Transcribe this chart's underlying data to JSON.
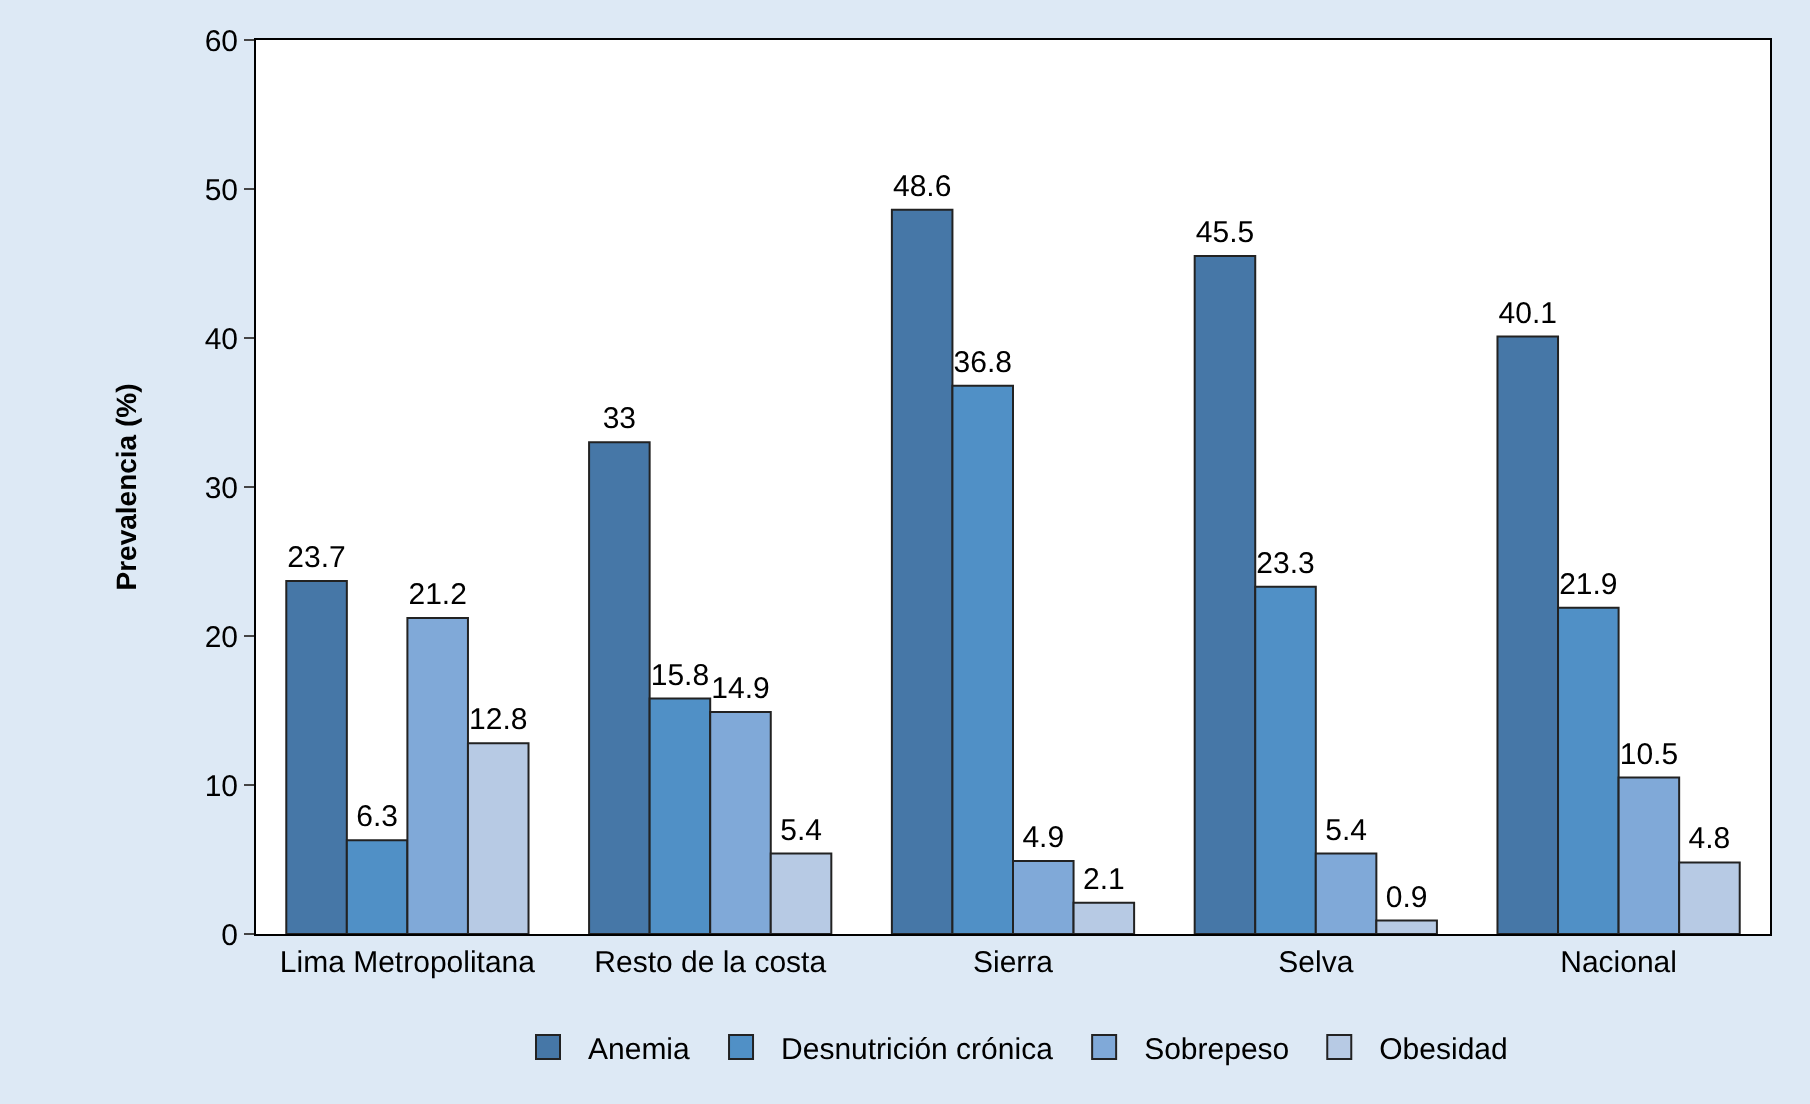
{
  "chart_data": {
    "type": "bar",
    "ylabel": "Prevalencia (%)",
    "categories": [
      "Lima Metropolitana",
      "Resto de la costa",
      "Sierra",
      "Selva",
      "Nacional"
    ],
    "series": [
      {
        "name": "Anemia",
        "color": "#4677a7",
        "values": [
          23.7,
          33,
          48.6,
          45.5,
          40.1
        ]
      },
      {
        "name": "Desnutrición crónica",
        "color": "#5090c6",
        "values": [
          6.3,
          15.8,
          36.8,
          23.3,
          21.9
        ]
      },
      {
        "name": "Sobrepeso",
        "color": "#80a9d8",
        "values": [
          21.2,
          14.9,
          4.9,
          5.4,
          10.5
        ]
      },
      {
        "name": "Obesidad",
        "color": "#b7cae4",
        "values": [
          12.8,
          5.4,
          2.1,
          0.9,
          4.8
        ]
      }
    ],
    "ylim": [
      0,
      60
    ],
    "yticks": [
      0,
      10,
      20,
      30,
      40,
      50,
      60
    ],
    "legend": "bottom",
    "data_labels": true
  }
}
